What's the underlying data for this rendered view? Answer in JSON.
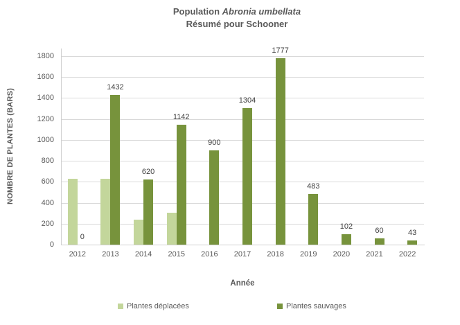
{
  "chart": {
    "title_prefix": "Population ",
    "title_species": "Abronia umbellata",
    "subtitle": "Résumé pour Schooner",
    "xlabel": "Année",
    "ylabel": "NOMBRE DE PLANTES (BARS)"
  },
  "chart_data": {
    "type": "bar",
    "title": "Population Abronia umbellata — Résumé pour Schooner",
    "xlabel": "Année",
    "ylabel": "NOMBRE DE PLANTES (BARS)",
    "categories": [
      "2012",
      "2013",
      "2014",
      "2015",
      "2016",
      "2017",
      "2018",
      "2019",
      "2020",
      "2021",
      "2022"
    ],
    "series": [
      {
        "name": "Plantes déplacées",
        "color": "#c3d69b",
        "data_labels": false,
        "values": [
          630,
          630,
          235,
          305,
          0,
          0,
          0,
          0,
          0,
          0,
          0
        ]
      },
      {
        "name": "Plantes sauvages",
        "color": "#77933c",
        "data_labels": true,
        "values": [
          0,
          1432,
          620,
          1142,
          900,
          1304,
          1777,
          483,
          102,
          60,
          43
        ]
      }
    ],
    "ylim": [
      0,
      1800
    ],
    "ytick_step": 200,
    "grid": true,
    "legend_position": "bottom",
    "colors": {
      "gridline": "#d9d9d9",
      "axis_line": "#cfcfcf",
      "tick_text": "#595959",
      "title_text": "#595959",
      "data_label_text": "#404040"
    }
  }
}
